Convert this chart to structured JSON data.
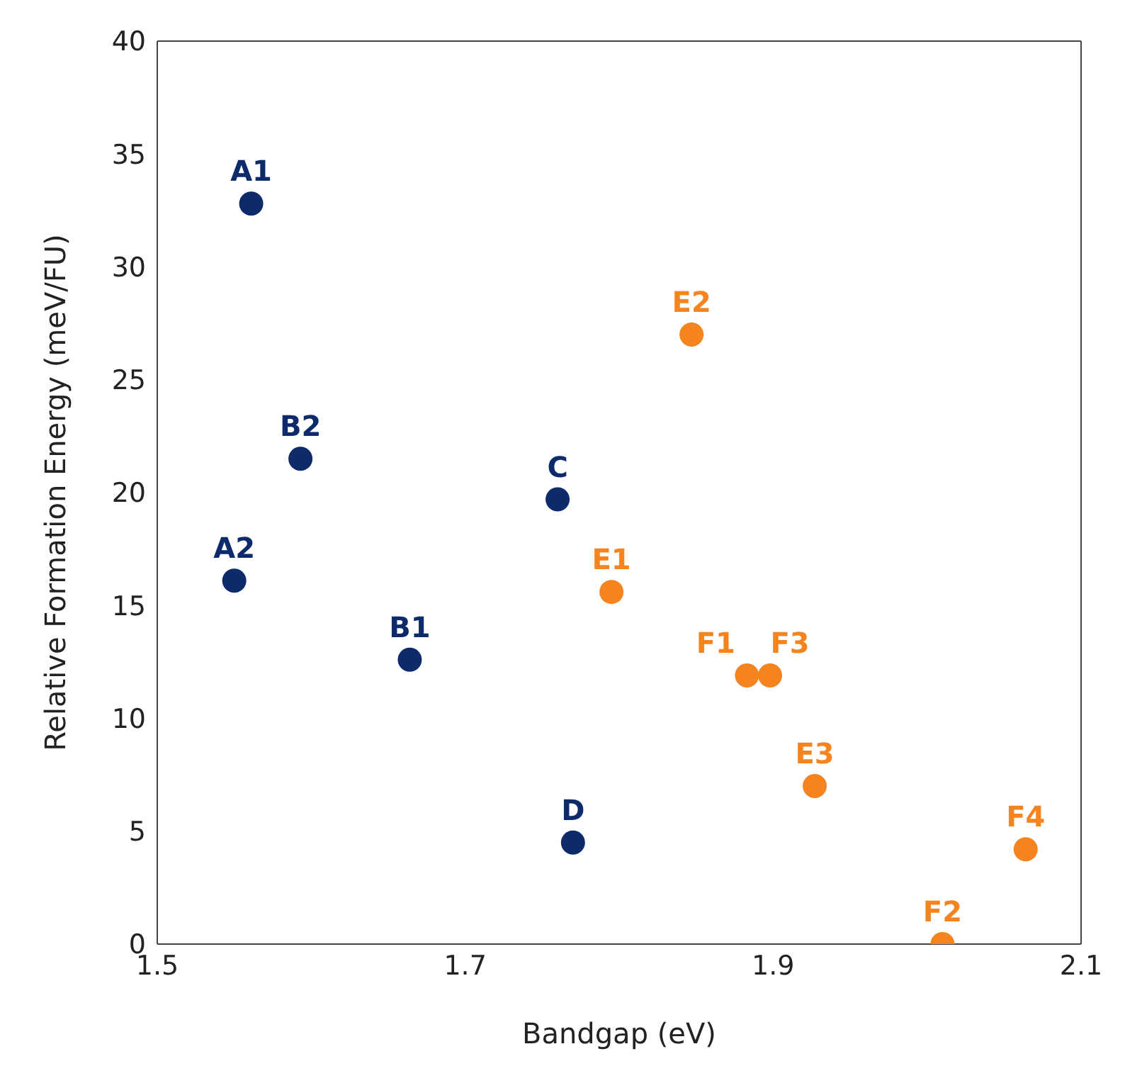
{
  "chart_data": {
    "type": "scatter",
    "xlabel": "Bandgap (eV)",
    "ylabel": "Relative Formation Energy (meV/FU)",
    "series": [
      {
        "color": "#0d2a6b",
        "x": [
          1.561,
          1.55,
          1.593,
          1.664,
          1.76,
          1.77
        ],
        "values": [
          32.8,
          16.1,
          21.5,
          12.6,
          19.7,
          4.5
        ]
      },
      {
        "color": "#f5841f",
        "x": [
          1.847,
          1.795,
          1.883,
          1.898,
          1.927,
          2.01,
          2.064
        ],
        "values": [
          27.0,
          15.6,
          11.9,
          11.9,
          7.0,
          0,
          4.2
        ]
      }
    ],
    "annotations": [
      {
        "text": "A1",
        "x": 1.561,
        "y": 32.8
      },
      {
        "text": "A2",
        "x": 1.55,
        "y": 16.1
      },
      {
        "text": "B2",
        "x": 1.593,
        "y": 21.5
      },
      {
        "text": "B1",
        "x": 1.664,
        "y": 12.6
      },
      {
        "text": "C",
        "x": 1.76,
        "y": 19.7
      },
      {
        "text": "D",
        "x": 1.77,
        "y": 4.5
      },
      {
        "text": "E2",
        "x": 1.847,
        "y": 27.0
      },
      {
        "text": "E1",
        "x": 1.795,
        "y": 15.6
      },
      {
        "text": "F1",
        "x": 1.883,
        "y": 11.9
      },
      {
        "text": "F3",
        "x": 1.898,
        "y": 11.9
      },
      {
        "text": "E3",
        "x": 1.927,
        "y": 7.0
      },
      {
        "text": "F2",
        "x": 2.01,
        "y": 0
      },
      {
        "text": "F4",
        "x": 2.064,
        "y": 4.2
      }
    ],
    "xlim": [
      1.5,
      2.1
    ],
    "xticks": [
      1.5,
      1.7,
      1.9,
      2.1
    ],
    "ylim": [
      0,
      40
    ],
    "yticks": [
      0,
      5,
      10,
      15,
      20,
      25,
      30,
      35,
      40
    ],
    "marker": "circle",
    "grid": false,
    "legend": false
  }
}
